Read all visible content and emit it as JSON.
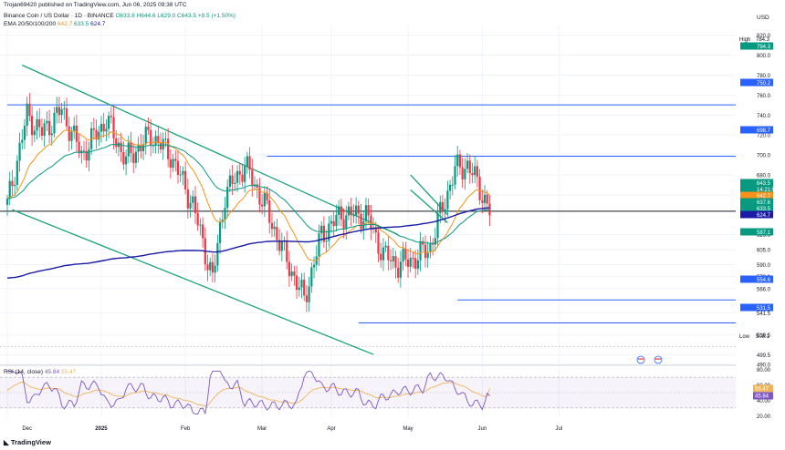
{
  "header": {
    "publisher": "Trojan69420 published on TradingView.com, Jun 06, 2025 09:38 UTC",
    "symbol": "Binance Coin / US Dollar · 1D · BINANCE",
    "ohlc": "O633.8 H644.6 L629.0 C643.5 +9.5 (+1.50%)",
    "ema_label": "EMA 20/50/100/200",
    "ema_values": [
      "642.7",
      "633.5",
      "624.7"
    ]
  },
  "rsi_header": {
    "label": "RSI (14, close)",
    "values": [
      "45.84",
      "55.47"
    ]
  },
  "currency": "USD",
  "branding": "TradingView",
  "colors": {
    "up": "#089981",
    "down": "#f23645",
    "ema20": "#f7931a",
    "ema50": "#089981",
    "ema200": "#1a1aa6",
    "trendline": "#1ba27a",
    "hline": "#2962ff",
    "rsi": "#7e57c2",
    "rsi_ma": "#f0b35a"
  },
  "chart_data": [
    {
      "type": "candlestick",
      "title": "Binance Coin / US Dollar · 1D · BINANCE",
      "y_ticks": [
        "820.0",
        "800.0",
        "780.0",
        "760.0",
        "740.0",
        "720.0",
        "700.0",
        "680.0",
        "660.0",
        "620.0",
        "605.0",
        "590.0",
        "578.0",
        "566.0",
        "541.5",
        "519.5",
        "499.5",
        "490.0"
      ],
      "x_ticks": [
        "Dec",
        "2025",
        "Feb",
        "Mar",
        "Apr",
        "May",
        "Jun",
        "Jul"
      ],
      "ylim": [
        488,
        822
      ],
      "horizontal_levels": [
        750.2,
        698.7,
        643.5,
        554.6,
        531.5
      ],
      "price_labels": [
        {
          "text": "High",
          "value": "784.3",
          "kind": "plain"
        },
        {
          "text": "",
          "value": "794.3",
          "kind": "green"
        },
        {
          "text": "",
          "value": "750.2",
          "kind": "blue"
        },
        {
          "text": "",
          "value": "698.7",
          "kind": "blue"
        },
        {
          "text": "",
          "value": "643.5",
          "kind": "green"
        },
        {
          "text": "",
          "value": "14:21:07",
          "kind": "green"
        },
        {
          "text": "",
          "value": "642.7",
          "kind": "orange"
        },
        {
          "text": "",
          "value": "637.6",
          "kind": "green"
        },
        {
          "text": "",
          "value": "633.5",
          "kind": "teal"
        },
        {
          "text": "",
          "value": "624.7",
          "kind": "navy"
        },
        {
          "text": "",
          "value": "587.1",
          "kind": "green"
        },
        {
          "text": "",
          "value": "554.6",
          "kind": "blue"
        },
        {
          "text": "",
          "value": "531.5",
          "kind": "blue"
        },
        {
          "text": "Low",
          "value": "508.1",
          "kind": "plain"
        }
      ],
      "trendlines": [
        {
          "from": [
            "2024-11-29",
            790
          ],
          "to": [
            "2025-04-30",
            620
          ]
        },
        {
          "from": [
            "2024-11-25",
            645
          ],
          "to": [
            "2025-04-20",
            500
          ]
        },
        {
          "from": [
            "2025-05-05",
            680
          ],
          "to": [
            "2025-05-20",
            640
          ]
        },
        {
          "from": [
            "2025-05-05",
            665
          ],
          "to": [
            "2025-05-20",
            632
          ]
        }
      ],
      "series": [
        {
          "name": "EMA 20"
        },
        {
          "name": "EMA 50"
        },
        {
          "name": "EMA 200"
        }
      ]
    },
    {
      "type": "line",
      "title": "RSI (14, close)",
      "y_ticks": [
        "80.00",
        "60.00",
        "40.00",
        "20.00"
      ],
      "ylim": [
        18,
        82
      ],
      "bands": [
        70,
        30
      ],
      "series": [
        {
          "name": "RSI",
          "last": 45.84
        },
        {
          "name": "RSI MA",
          "last": 55.47
        }
      ],
      "value_labels": [
        "55.47",
        "45.84"
      ]
    }
  ]
}
